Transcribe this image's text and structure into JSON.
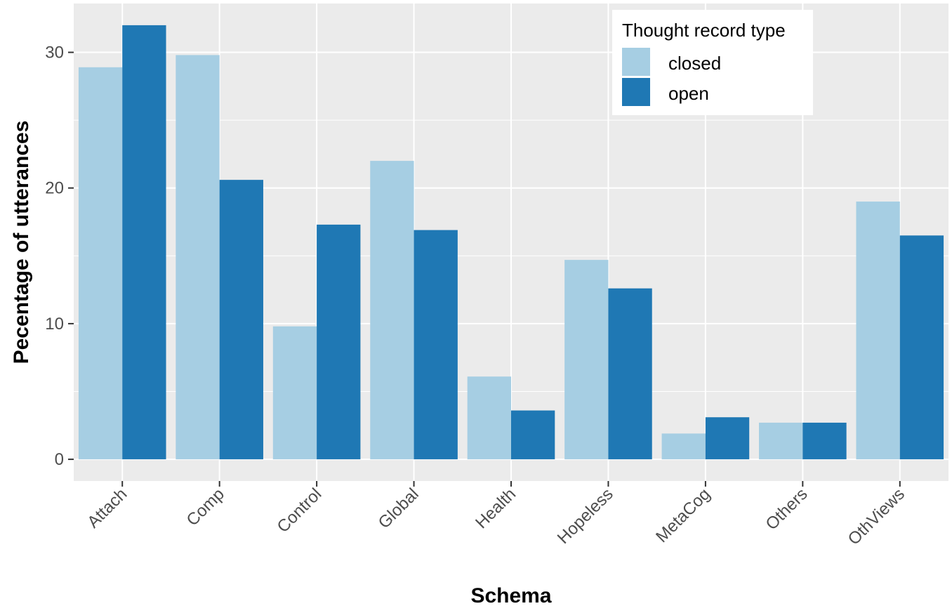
{
  "chart_data": {
    "type": "bar",
    "title": "",
    "xlabel": "Schema",
    "ylabel": "Pecentage of utterances",
    "categories": [
      "Attach",
      "Comp",
      "Control",
      "Global",
      "Health",
      "Hopeless",
      "MetaCog",
      "Others",
      "OthViews"
    ],
    "series": [
      {
        "name": "closed",
        "values": [
          28.9,
          29.8,
          9.8,
          22.0,
          6.1,
          14.7,
          1.9,
          2.7,
          19.0
        ],
        "color": "#a6cee3"
      },
      {
        "name": "open",
        "values": [
          32.0,
          20.6,
          17.3,
          16.9,
          3.6,
          12.6,
          3.1,
          2.7,
          16.5
        ],
        "color": "#1f78b4"
      }
    ],
    "ylim": [
      -1.6,
      33.6
    ],
    "yticks": [
      0,
      10,
      20,
      30
    ],
    "grid": true,
    "legend": {
      "title": "Thought record type",
      "position": "top-right"
    },
    "panel_color": "#ebebeb"
  }
}
